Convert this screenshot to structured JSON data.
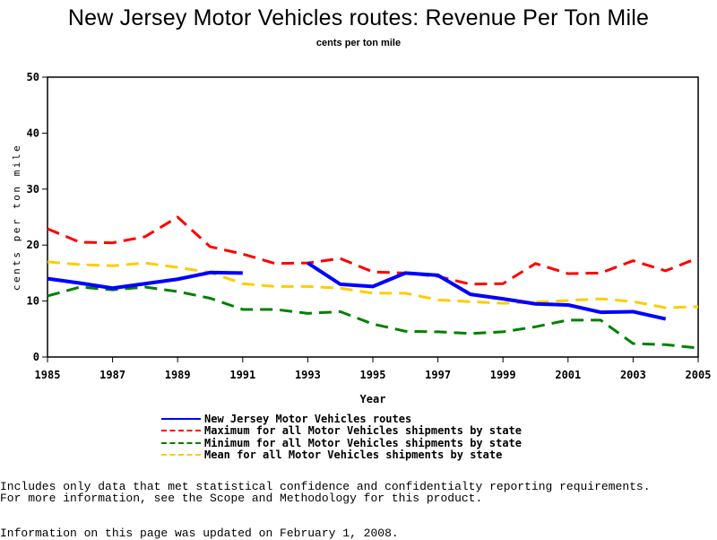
{
  "chart_data": {
    "type": "line",
    "title": "New Jersey Motor Vehicles routes: Revenue Per Ton Mile",
    "subtitle": "cents per ton mile",
    "xlabel": "Year",
    "ylabel": "cents per ton mile",
    "xlim": [
      1985,
      2005
    ],
    "ylim": [
      0,
      50
    ],
    "x_ticks": [
      1985,
      1987,
      1989,
      1991,
      1993,
      1995,
      1997,
      1999,
      2001,
      2003,
      2005
    ],
    "y_ticks": [
      0,
      10,
      20,
      30,
      40,
      50
    ],
    "grid": false,
    "legend_position": "bottom",
    "x": [
      1985,
      1986,
      1987,
      1988,
      1989,
      1990,
      1991,
      1992,
      1993,
      1994,
      1995,
      1996,
      1997,
      1998,
      1999,
      2000,
      2001,
      2002,
      2003,
      2004,
      2005
    ],
    "series": [
      {
        "name": "New Jersey Motor Vehicles routes",
        "color": "#0000ff",
        "style": "solid",
        "values": [
          14.0,
          13.2,
          12.3,
          13.1,
          13.9,
          15.1,
          15.0,
          null,
          16.8,
          13.0,
          12.6,
          15.0,
          14.6,
          11.2,
          10.4,
          9.5,
          9.3,
          8.0,
          8.1,
          6.8,
          null
        ]
      },
      {
        "name": "Maximum for all Motor Vehicles shipments by state",
        "color": "#ff0000",
        "style": "dashed",
        "values": [
          22.9,
          20.5,
          20.4,
          21.5,
          25.0,
          19.7,
          18.4,
          16.7,
          16.8,
          17.6,
          15.2,
          15.0,
          14.4,
          13.0,
          13.1,
          16.7,
          14.9,
          15.0,
          17.2,
          15.4,
          17.7
        ]
      },
      {
        "name": "Minimum for all Motor Vehicles shipments by state",
        "color": "#008000",
        "style": "dashed",
        "values": [
          10.9,
          12.5,
          12.0,
          12.5,
          11.7,
          10.5,
          8.5,
          8.5,
          7.8,
          8.1,
          5.9,
          4.6,
          4.5,
          4.2,
          4.5,
          5.4,
          6.6,
          6.6,
          2.4,
          2.2,
          1.6
        ]
      },
      {
        "name": "Mean for all Motor Vehicles shipments by state",
        "color": "#ffcc00",
        "style": "dashed",
        "values": [
          17.0,
          16.5,
          16.3,
          16.8,
          16.0,
          15.1,
          13.1,
          12.6,
          12.6,
          12.3,
          11.4,
          11.4,
          10.2,
          9.9,
          9.6,
          9.8,
          10.1,
          10.4,
          9.9,
          8.8,
          9.0
        ]
      }
    ]
  },
  "footer": {
    "note_line1": "Includes only data that met statistical confidence and confidentialty reporting requirements.",
    "note_line2": "For more information, see the Scope and Methodology for this product.",
    "updated": "Information on this page was updated on February 1, 2008."
  }
}
